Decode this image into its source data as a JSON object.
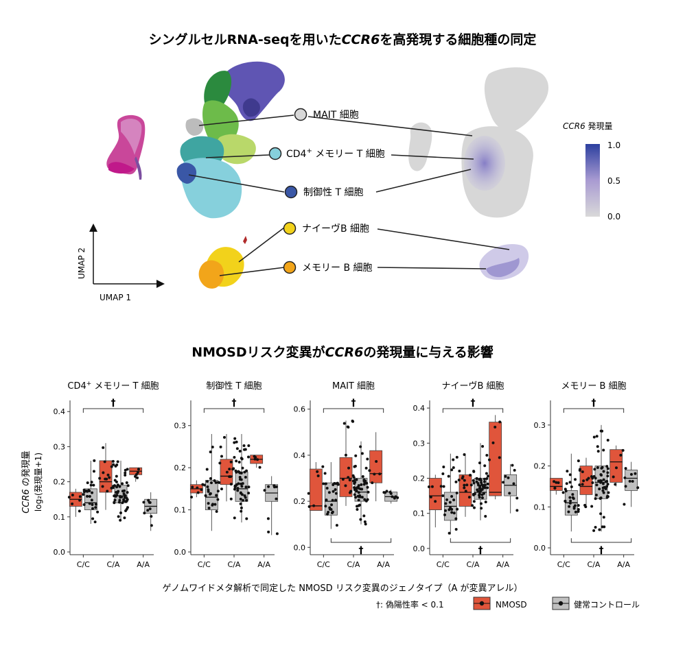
{
  "figure": {
    "title_top": {
      "pre": "シングルセルRNA-seqを用いた",
      "gene": "CCR6",
      "post": "を高発現する細胞種の同定"
    },
    "title_bottom": {
      "pre": "NMOSDリスク変異が",
      "gene": "CCR6",
      "post": "の発現量に与える影響"
    },
    "umap": {
      "axis_x": "UMAP 1",
      "axis_y": "UMAP 2",
      "legend_title_gene": "CCR6",
      "legend_title_rest": " 発現量",
      "legend_ticks": [
        "1.0",
        "0.5",
        "0.0"
      ],
      "cell_types": [
        {
          "label_pre": "MAIT 細胞",
          "sup": "",
          "label_post": "",
          "color": "#d8d8d8"
        },
        {
          "label_pre": "CD4",
          "sup": "+",
          "label_post": " メモリー T 細胞",
          "color": "#86d0dc"
        },
        {
          "label_pre": "制御性 T 細胞",
          "sup": "",
          "label_post": "",
          "color": "#3a57a6"
        },
        {
          "label_pre": "ナイーヴB 細胞",
          "sup": "",
          "label_post": "",
          "color": "#f2d21b"
        },
        {
          "label_pre": "メモリー B 細胞",
          "sup": "",
          "label_post": "",
          "color": "#f2a51a"
        }
      ]
    },
    "y_axis_label_gene": "CCR6",
    "y_axis_label_rest": " の発現量",
    "y_axis_label2": "log₂(発現量+1)",
    "x_axis_title": "ゲノムワイドメタ解析で同定した NMOSD リスク変異のジェノタイプ（A が変異アレル）",
    "dagger": "†",
    "legend": {
      "fdr": "†: 偽陽性率 < 0.1",
      "nmosd": "NMOSD",
      "control": "健常コントロール"
    },
    "colors": {
      "nmosd": "#e0553b",
      "control": "#c0c0c0"
    }
  },
  "chart_data": [
    {
      "type": "box",
      "title_pre": "CD4",
      "sup": "+",
      "title_post": " メモリー T 細胞",
      "categories": [
        "C/C",
        "C/A",
        "A/A"
      ],
      "ylim": [
        0,
        0.42
      ],
      "yticks": [
        0,
        0.1,
        0.2,
        0.3,
        0.4
      ],
      "dagger_top": true,
      "dagger_bottom": false,
      "nmosd": [
        {
          "min": 0.1,
          "q1": 0.13,
          "median": 0.15,
          "q3": 0.17,
          "max": 0.18
        },
        {
          "min": 0.12,
          "q1": 0.17,
          "median": 0.2,
          "q3": 0.26,
          "max": 0.31
        },
        {
          "min": 0.2,
          "q1": 0.22,
          "median": 0.23,
          "q3": 0.24,
          "max": 0.24
        }
      ],
      "control": [
        {
          "min": 0.08,
          "q1": 0.12,
          "median": 0.14,
          "q3": 0.18,
          "max": 0.26
        },
        {
          "min": 0.09,
          "q1": 0.14,
          "median": 0.16,
          "q3": 0.19,
          "max": 0.26
        },
        {
          "min": 0.06,
          "q1": 0.11,
          "median": 0.13,
          "q3": 0.15,
          "max": 0.17
        }
      ],
      "n_nmosd": [
        6,
        14,
        5
      ],
      "n_control": [
        26,
        55,
        9
      ]
    },
    {
      "type": "box",
      "title_pre": "制御性 T 細胞",
      "sup": "",
      "title_post": "",
      "categories": [
        "C/C",
        "C/A",
        "A/A"
      ],
      "ylim": [
        0,
        0.35
      ],
      "yticks": [
        0,
        0.1,
        0.2,
        0.3
      ],
      "dagger_top": true,
      "dagger_bottom": false,
      "nmosd": [
        {
          "min": 0.13,
          "q1": 0.14,
          "median": 0.15,
          "q3": 0.16,
          "max": 0.17
        },
        {
          "min": 0.12,
          "q1": 0.16,
          "median": 0.18,
          "q3": 0.22,
          "max": 0.28
        },
        {
          "min": 0.2,
          "q1": 0.21,
          "median": 0.22,
          "q3": 0.23,
          "max": 0.23
        }
      ],
      "control": [
        {
          "min": 0.05,
          "q1": 0.1,
          "median": 0.13,
          "q3": 0.17,
          "max": 0.28
        },
        {
          "min": 0.07,
          "q1": 0.12,
          "median": 0.15,
          "q3": 0.19,
          "max": 0.28
        },
        {
          "min": 0.04,
          "q1": 0.12,
          "median": 0.14,
          "q3": 0.16,
          "max": 0.18
        }
      ],
      "n_nmosd": [
        6,
        14,
        5
      ],
      "n_control": [
        26,
        55,
        9
      ]
    },
    {
      "type": "box",
      "title_pre": "MAIT 細胞",
      "sup": "",
      "title_post": "",
      "categories": [
        "C/C",
        "C/A",
        "A/A"
      ],
      "ylim": [
        -0.02,
        0.62
      ],
      "yticks": [
        0,
        0.2,
        0.4,
        0.6
      ],
      "dagger_top": true,
      "dagger_bottom": true,
      "nmosd": [
        {
          "min": 0.16,
          "q1": 0.16,
          "median": 0.18,
          "q3": 0.34,
          "max": 0.37
        },
        {
          "min": 0.18,
          "q1": 0.22,
          "median": 0.3,
          "q3": 0.39,
          "max": 0.55
        },
        {
          "min": 0.2,
          "q1": 0.28,
          "median": 0.32,
          "q3": 0.42,
          "max": 0.5
        }
      ],
      "control": [
        {
          "min": 0.08,
          "q1": 0.14,
          "median": 0.2,
          "q3": 0.28,
          "max": 0.37
        },
        {
          "min": 0.1,
          "q1": 0.2,
          "median": 0.24,
          "q3": 0.3,
          "max": 0.46
        },
        {
          "min": 0.19,
          "q1": 0.2,
          "median": 0.22,
          "q3": 0.24,
          "max": 0.25
        }
      ],
      "n_nmosd": [
        6,
        14,
        5
      ],
      "n_control": [
        26,
        55,
        9
      ]
    },
    {
      "type": "box",
      "title_pre": "ナイーヴB 細胞",
      "sup": "",
      "title_post": "",
      "categories": [
        "C/C",
        "C/A",
        "A/A"
      ],
      "ylim": [
        -0.01,
        0.41
      ],
      "yticks": [
        0,
        0.1,
        0.2,
        0.3,
        0.4
      ],
      "dagger_top": true,
      "dagger_bottom": true,
      "nmosd": [
        {
          "min": 0.06,
          "q1": 0.11,
          "median": 0.15,
          "q3": 0.2,
          "max": 0.21
        },
        {
          "min": 0.09,
          "q1": 0.12,
          "median": 0.16,
          "q3": 0.21,
          "max": 0.27
        },
        {
          "min": 0.14,
          "q1": 0.15,
          "median": 0.16,
          "q3": 0.36,
          "max": 0.38
        }
      ],
      "control": [
        {
          "min": 0.04,
          "q1": 0.08,
          "median": 0.12,
          "q3": 0.16,
          "max": 0.27
        },
        {
          "min": 0.08,
          "q1": 0.14,
          "median": 0.16,
          "q3": 0.2,
          "max": 0.3
        },
        {
          "min": 0.1,
          "q1": 0.15,
          "median": 0.18,
          "q3": 0.21,
          "max": 0.24
        }
      ],
      "n_nmosd": [
        6,
        14,
        5
      ],
      "n_control": [
        26,
        55,
        9
      ]
    },
    {
      "type": "box",
      "title_pre": "メモリー B 細胞",
      "sup": "",
      "title_post": "",
      "categories": [
        "C/C",
        "C/A",
        "A/A"
      ],
      "ylim": [
        -0.01,
        0.35
      ],
      "yticks": [
        0,
        0.1,
        0.2,
        0.3
      ],
      "dagger_top": true,
      "dagger_bottom": true,
      "nmosd": [
        {
          "min": 0.13,
          "q1": 0.14,
          "median": 0.15,
          "q3": 0.17,
          "max": 0.17
        },
        {
          "min": 0.1,
          "q1": 0.13,
          "median": 0.15,
          "q3": 0.2,
          "max": 0.22
        },
        {
          "min": 0.15,
          "q1": 0.16,
          "median": 0.21,
          "q3": 0.24,
          "max": 0.25
        }
      ],
      "control": [
        {
          "min": 0.04,
          "q1": 0.08,
          "median": 0.11,
          "q3": 0.14,
          "max": 0.23
        },
        {
          "min": 0.04,
          "q1": 0.12,
          "median": 0.16,
          "q3": 0.2,
          "max": 0.3
        },
        {
          "min": 0.1,
          "q1": 0.14,
          "median": 0.17,
          "q3": 0.19,
          "max": 0.21
        }
      ],
      "n_nmosd": [
        6,
        14,
        5
      ],
      "n_control": [
        26,
        55,
        9
      ]
    }
  ]
}
